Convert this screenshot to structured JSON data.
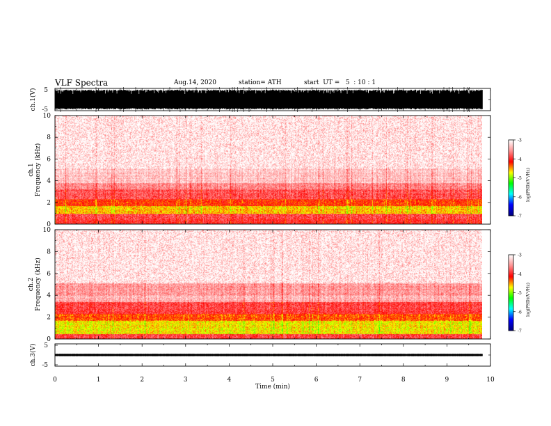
{
  "header": {
    "title": "VLF Spectra",
    "date": "Aug.14, 2020",
    "station": "station= ATH",
    "start": "start  UT =   5  : 10 : 1"
  },
  "chart_data": [
    {
      "type": "line",
      "panel": "ch1-waveform",
      "ylabel": "ch.1(V)",
      "ylim": [
        -5,
        5
      ],
      "yticks": [
        "5",
        "-5"
      ],
      "xlim": [
        0,
        10
      ],
      "data_end_min": 9.82,
      "signal": "dense broadband waveform filling approximately -4.5 to +4.5 V",
      "color": "#000000"
    },
    {
      "type": "heatmap",
      "panel": "ch1-spectrogram",
      "ylabel": "ch.1\nFrequency  (kHz)",
      "ylim": [
        0,
        10
      ],
      "yticks": [
        "0",
        "2",
        "4",
        "6",
        "8",
        "10"
      ],
      "xlim": [
        0,
        10
      ],
      "data_end_min": 9.82,
      "colorbar": {
        "label": "log(PSD)(V²/Hz)",
        "range": [
          -7,
          -3
        ],
        "ticks": [
          "-3",
          "-4",
          "-5",
          "-6",
          "-7"
        ],
        "colors": [
          "#ffffff",
          "#ff9090",
          "#ff0000",
          "#ffff00",
          "#00ff00",
          "#00ffff",
          "#0000ff",
          "#000080"
        ]
      },
      "bands_khz": [
        {
          "from": 0.0,
          "to": 0.5,
          "level": -4.0
        },
        {
          "from": 0.5,
          "to": 1.0,
          "level": -3.9
        },
        {
          "from": 1.0,
          "to": 1.7,
          "level": -4.6
        },
        {
          "from": 1.7,
          "to": 2.3,
          "level": -4.2
        },
        {
          "from": 2.3,
          "to": 3.2,
          "level": -3.8
        },
        {
          "from": 3.2,
          "to": 3.8,
          "level": -3.6
        },
        {
          "from": 3.8,
          "to": 5.1,
          "level": -3.3
        },
        {
          "from": 5.1,
          "to": 10.0,
          "level": -3.1
        }
      ]
    },
    {
      "type": "heatmap",
      "panel": "ch2-spectrogram",
      "ylabel": "ch.2\nFrequency  (kHz)",
      "ylim": [
        0,
        10
      ],
      "yticks": [
        "0",
        "2",
        "4",
        "6",
        "8",
        "10"
      ],
      "xlim": [
        0,
        10
      ],
      "data_end_min": 9.82,
      "colorbar": {
        "label": "log(PSD)(V²/Hz)",
        "range": [
          -7,
          -3
        ],
        "ticks": [
          "-3",
          "-4",
          "-5",
          "-6",
          "-7"
        ],
        "colors": [
          "#ffffff",
          "#ff9090",
          "#ff0000",
          "#ffff00",
          "#00ff00",
          "#00ffff",
          "#0000ff",
          "#000080"
        ]
      },
      "bands_khz": [
        {
          "from": 0.0,
          "to": 0.5,
          "level": -3.9
        },
        {
          "from": 0.5,
          "to": 1.7,
          "level": -4.7
        },
        {
          "from": 1.7,
          "to": 2.3,
          "level": -4.3
        },
        {
          "from": 2.3,
          "to": 3.4,
          "level": -3.9
        },
        {
          "from": 3.4,
          "to": 4.0,
          "level": -3.4
        },
        {
          "from": 4.0,
          "to": 5.1,
          "level": -3.5
        },
        {
          "from": 5.1,
          "to": 10.0,
          "level": -3.1
        }
      ]
    },
    {
      "type": "line",
      "panel": "ch3-waveform",
      "ylabel": "ch.3(V)",
      "ylim": [
        -5,
        5
      ],
      "yticks": [
        "5",
        "-5"
      ],
      "xlim": [
        0,
        10
      ],
      "xlabel": "Time  (min)",
      "xticks": [
        "0",
        "1",
        "2",
        "3",
        "4",
        "5",
        "6",
        "7",
        "8",
        "9",
        "10"
      ],
      "data_end_min": 9.82,
      "signal": "narrow band near 0 V, approximately -0.5 to +0.5 V",
      "color": "#000000"
    }
  ]
}
